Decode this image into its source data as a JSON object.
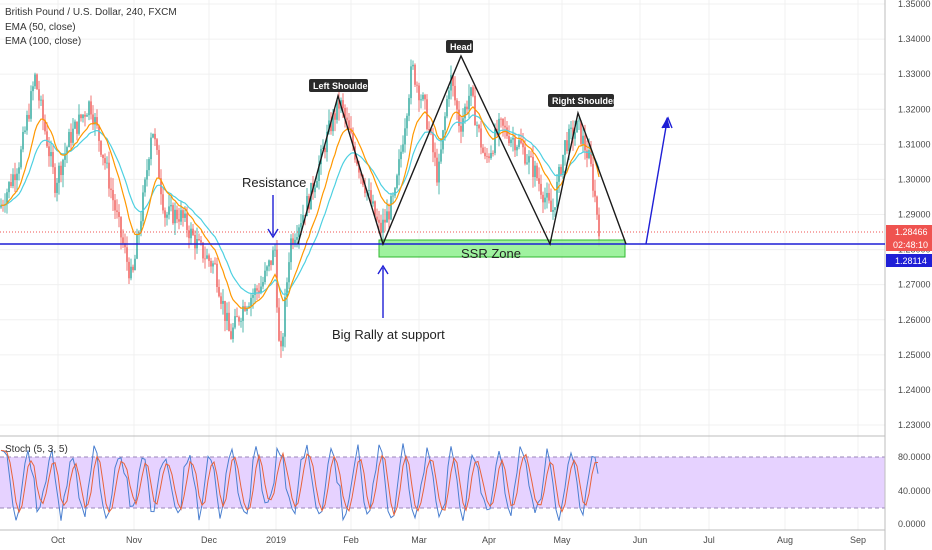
{
  "legend": {
    "main": "British Pound / U.S. Dollar, 240, FXCM",
    "ema50": "EMA (50, close)",
    "ema100": "EMA (100, close)",
    "stoch": "Stoch (5, 3, 5)"
  },
  "annotations": {
    "resistance": "Resistance",
    "big_rally": "Big Rally at support",
    "left_shoulder": "Left Shoulder",
    "head": "Head",
    "right_shoulder": "Right Shoulder",
    "ssr_zone": "SSR Zone"
  },
  "price_tags": {
    "last": "1.28466",
    "countdown": "02:48:10",
    "line": "1.28114"
  },
  "colors": {
    "up_candle": "#26a69a",
    "down_candle": "#ef5350",
    "ema50": "#ff9800",
    "ema100": "#4dd0e1",
    "neckline": "#1f1fd6",
    "zone_fill": "#8ef08e",
    "zone_stroke": "#2fb82f",
    "tag_bg": "#2b2b2b",
    "last_price": "#ef5350",
    "stoch_k": "#4a7fd0",
    "stoch_d": "#e8623a",
    "stoch_band": "#e6d2ff"
  },
  "chart_data": {
    "type": "candlestick",
    "title": "British Pound / U.S. Dollar, 240, FXCM",
    "y_ticks": [
      "1.23000",
      "1.24000",
      "1.25000",
      "1.26000",
      "1.27000",
      "1.28000",
      "1.29000",
      "1.30000",
      "1.31000",
      "1.32000",
      "1.33000",
      "1.34000",
      "1.35000"
    ],
    "ylim": [
      1.2285,
      1.3505
    ],
    "x_ticks": [
      "Oct",
      "Nov",
      "Dec",
      "2019",
      "Feb",
      "Mar",
      "Apr",
      "May",
      "Jun",
      "Jul",
      "Aug",
      "Sep"
    ],
    "last_price": 1.28466,
    "neckline_price": 1.28114,
    "price_path": [
      [
        0,
        1.292
      ],
      [
        20,
        1.306
      ],
      [
        35,
        1.329
      ],
      [
        55,
        1.299
      ],
      [
        70,
        1.312
      ],
      [
        90,
        1.322
      ],
      [
        105,
        1.305
      ],
      [
        120,
        1.285
      ],
      [
        132,
        1.271
      ],
      [
        145,
        1.298
      ],
      [
        152,
        1.316
      ],
      [
        165,
        1.29
      ],
      [
        180,
        1.29
      ],
      [
        200,
        1.28
      ],
      [
        215,
        1.275
      ],
      [
        230,
        1.255
      ],
      [
        245,
        1.265
      ],
      [
        262,
        1.27
      ],
      [
        275,
        1.28
      ],
      [
        280,
        1.246
      ],
      [
        290,
        1.282
      ],
      [
        310,
        1.295
      ],
      [
        330,
        1.315
      ],
      [
        340,
        1.322
      ],
      [
        360,
        1.303
      ],
      [
        380,
        1.285
      ],
      [
        395,
        1.295
      ],
      [
        412,
        1.332
      ],
      [
        425,
        1.32
      ],
      [
        438,
        1.3
      ],
      [
        450,
        1.33
      ],
      [
        460,
        1.315
      ],
      [
        470,
        1.325
      ],
      [
        485,
        1.305
      ],
      [
        500,
        1.315
      ],
      [
        520,
        1.31
      ],
      [
        535,
        1.302
      ],
      [
        552,
        1.29
      ],
      [
        565,
        1.31
      ],
      [
        578,
        1.315
      ],
      [
        590,
        1.305
      ],
      [
        600,
        1.28466
      ]
    ],
    "stoch": {
      "levels": [
        20,
        80
      ],
      "y_ticks": [
        "0.0000",
        "40.0000",
        "80.0000"
      ],
      "range": [
        0,
        100
      ]
    }
  }
}
